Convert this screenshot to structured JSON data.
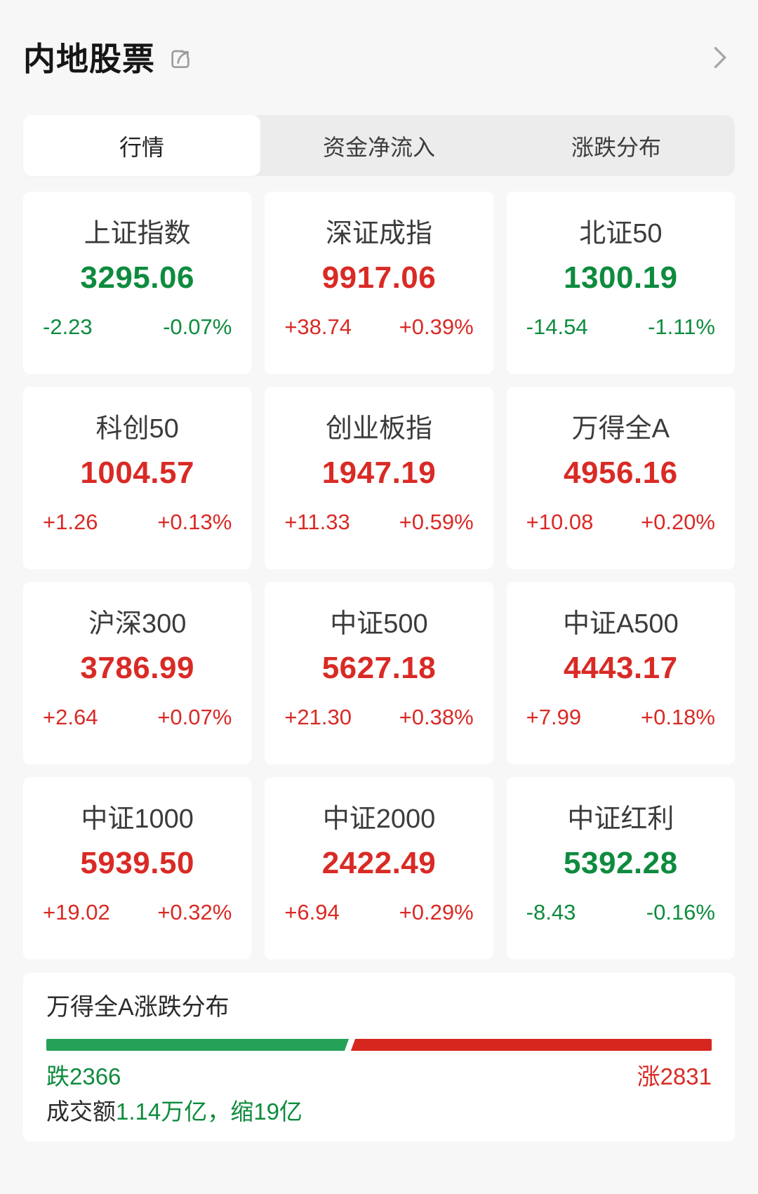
{
  "header": {
    "title": "内地股票"
  },
  "tabs": [
    {
      "label": "行情",
      "active": true
    },
    {
      "label": "资金净流入",
      "active": false
    },
    {
      "label": "涨跌分布",
      "active": false
    }
  ],
  "indices": [
    {
      "name": "上证指数",
      "value": "3295.06",
      "change": "-2.23",
      "change_pct": "-0.07%",
      "direction": "down"
    },
    {
      "name": "深证成指",
      "value": "9917.06",
      "change": "+38.74",
      "change_pct": "+0.39%",
      "direction": "up"
    },
    {
      "name": "北证50",
      "value": "1300.19",
      "change": "-14.54",
      "change_pct": "-1.11%",
      "direction": "down"
    },
    {
      "name": "科创50",
      "value": "1004.57",
      "change": "+1.26",
      "change_pct": "+0.13%",
      "direction": "up"
    },
    {
      "name": "创业板指",
      "value": "1947.19",
      "change": "+11.33",
      "change_pct": "+0.59%",
      "direction": "up"
    },
    {
      "name": "万得全A",
      "value": "4956.16",
      "change": "+10.08",
      "change_pct": "+0.20%",
      "direction": "up"
    },
    {
      "name": "沪深300",
      "value": "3786.99",
      "change": "+2.64",
      "change_pct": "+0.07%",
      "direction": "up"
    },
    {
      "name": "中证500",
      "value": "5627.18",
      "change": "+21.30",
      "change_pct": "+0.38%",
      "direction": "up"
    },
    {
      "name": "中证A500",
      "value": "4443.17",
      "change": "+7.99",
      "change_pct": "+0.18%",
      "direction": "up"
    },
    {
      "name": "中证1000",
      "value": "5939.50",
      "change": "+19.02",
      "change_pct": "+0.32%",
      "direction": "up"
    },
    {
      "name": "中证2000",
      "value": "2422.49",
      "change": "+6.94",
      "change_pct": "+0.29%",
      "direction": "up"
    },
    {
      "name": "中证红利",
      "value": "5392.28",
      "change": "-8.43",
      "change_pct": "-0.16%",
      "direction": "down"
    }
  ],
  "distribution": {
    "title": "万得全A涨跌分布",
    "down_count": 2366,
    "up_count": 2831,
    "down_label": "跌2366",
    "up_label": "涨2831",
    "turnover_prefix": "成交额",
    "turnover_value": "1.14万亿，缩19亿"
  },
  "colors": {
    "up_text": "#d92a25",
    "down_text": "#0e8b3e",
    "bar_up": "#d7261d",
    "bar_down": "#26a158"
  }
}
